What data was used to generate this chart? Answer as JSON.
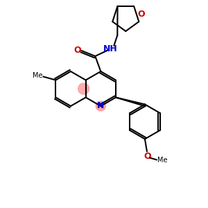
{
  "background_color": "#ffffff",
  "bond_color": "#000000",
  "N_color": "#0000cc",
  "O_color": "#cc0000",
  "highlight_color": "#ff9999",
  "lw": 1.5,
  "figsize": [
    3.0,
    3.0
  ],
  "dpi": 100,
  "xlim": [
    0,
    300
  ],
  "ylim": [
    0,
    300
  ],
  "ring_r": 25
}
